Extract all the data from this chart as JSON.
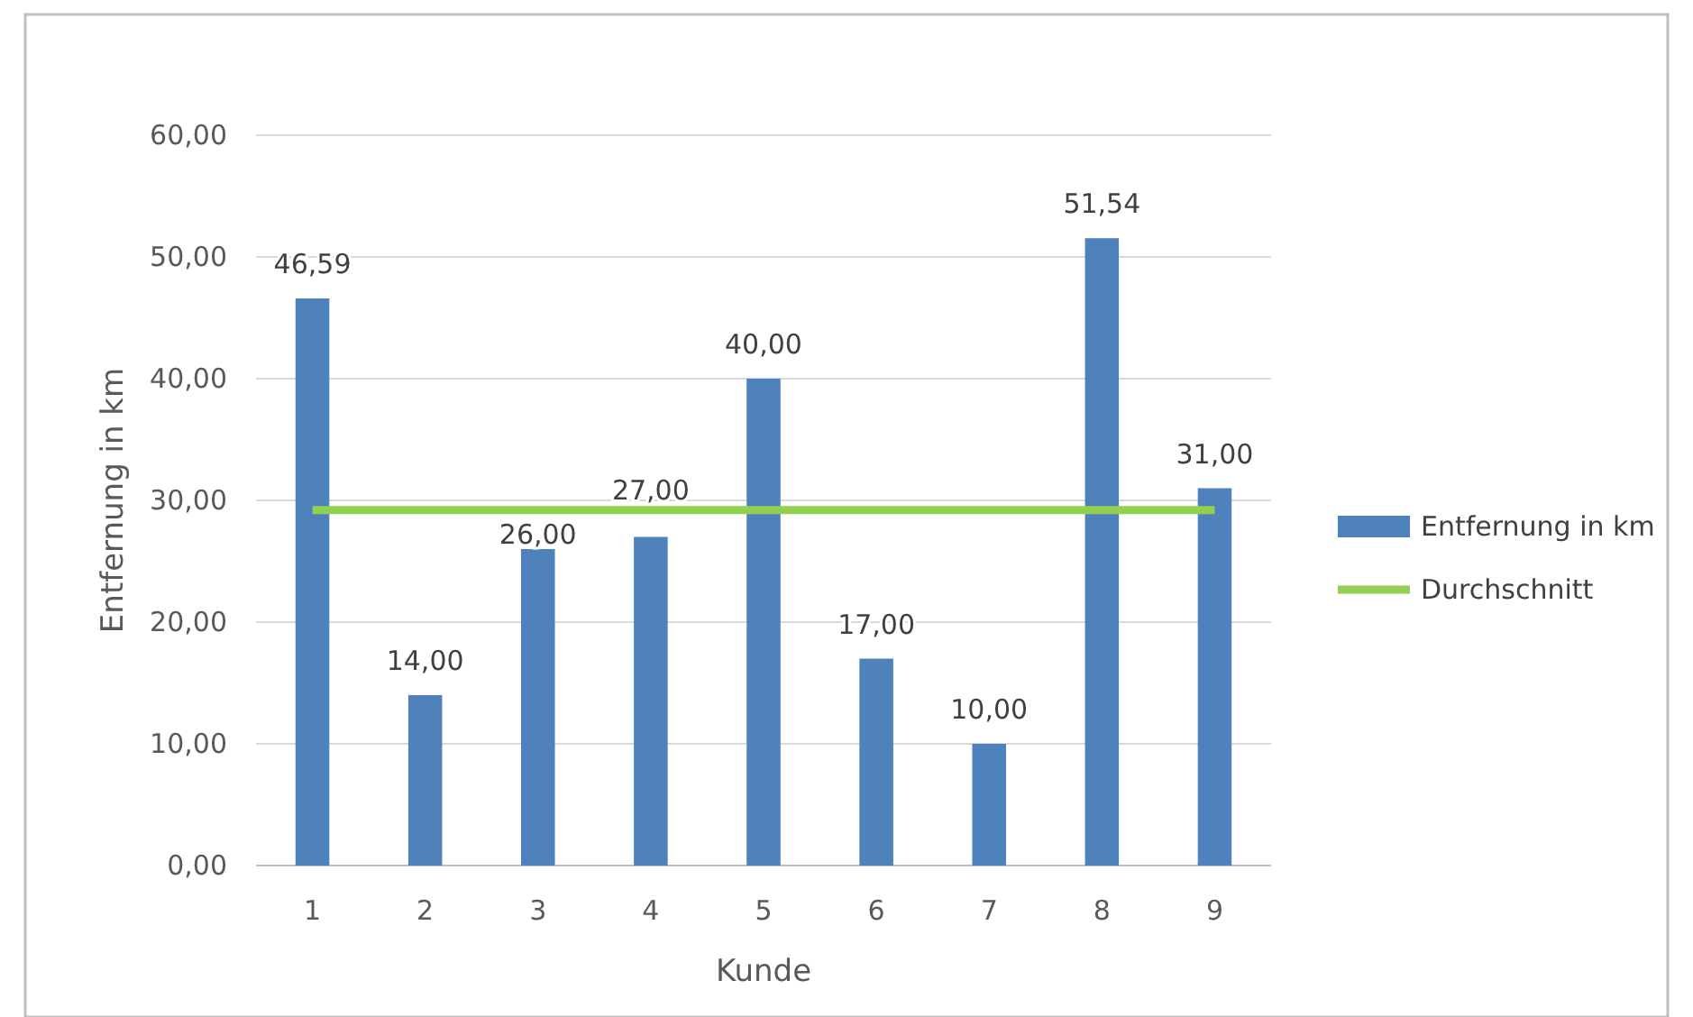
{
  "chart_data": {
    "type": "bar",
    "xlabel": "Kunde",
    "ylabel": "Entfernung in km",
    "categories": [
      "1",
      "2",
      "3",
      "4",
      "5",
      "6",
      "7",
      "8",
      "9"
    ],
    "series": [
      {
        "name": "Entfernung in km",
        "color": "#4f81bd",
        "values": [
          46.59,
          14,
          26,
          27,
          40,
          17,
          10,
          51.54,
          31
        ],
        "value_labels": [
          "46,59",
          "14,00",
          "26,00",
          "27,00",
          "40,00",
          "17,00",
          "10,00",
          "51,54",
          "31,00"
        ]
      },
      {
        "name": "Durchschnitt",
        "type": "line",
        "color": "#92d050",
        "values": [
          29.2,
          29.2,
          29.2,
          29.2,
          29.2,
          29.2,
          29.2,
          29.2,
          29.2
        ]
      }
    ],
    "ylim": [
      0,
      60
    ],
    "yticks": [
      {
        "value": 0,
        "label": "0,00"
      },
      {
        "value": 10,
        "label": "10,00"
      },
      {
        "value": 20,
        "label": "20,00"
      },
      {
        "value": 30,
        "label": "30,00"
      },
      {
        "value": 40,
        "label": "40,00"
      },
      {
        "value": 50,
        "label": "50,00"
      },
      {
        "value": 60,
        "label": "60,00"
      }
    ],
    "grid": "y",
    "legend": "right",
    "marker": "none",
    "line_style": "solid"
  }
}
